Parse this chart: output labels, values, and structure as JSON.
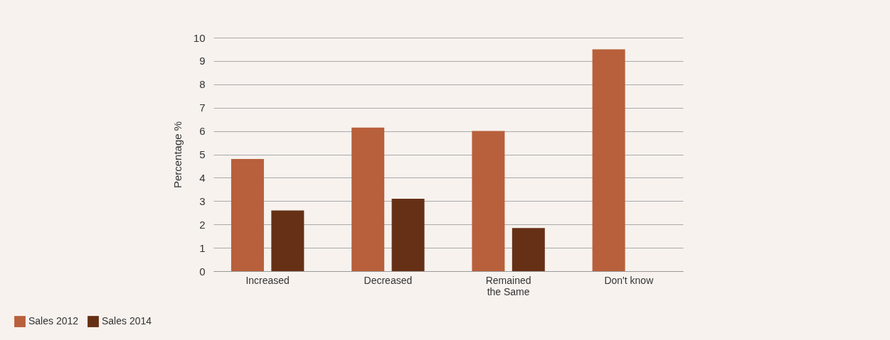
{
  "chart_data": {
    "type": "bar",
    "ylabel": "Percentage %",
    "categories": [
      "Increased",
      "Decreased",
      "Remained the Same",
      "Don't know"
    ],
    "series": [
      {
        "name": "Sales 2012",
        "color": "#b8603b",
        "values": [
          4.8,
          6.15,
          6.0,
          9.5
        ]
      },
      {
        "name": "Sales 2014",
        "color": "#663016",
        "values": [
          2.6,
          3.1,
          1.85,
          null
        ]
      }
    ],
    "ylim": [
      0,
      10
    ],
    "yticks": [
      0,
      1,
      2,
      3,
      4,
      5,
      6,
      7,
      8,
      9,
      10
    ],
    "grid": "y",
    "legend": "bottom left"
  }
}
